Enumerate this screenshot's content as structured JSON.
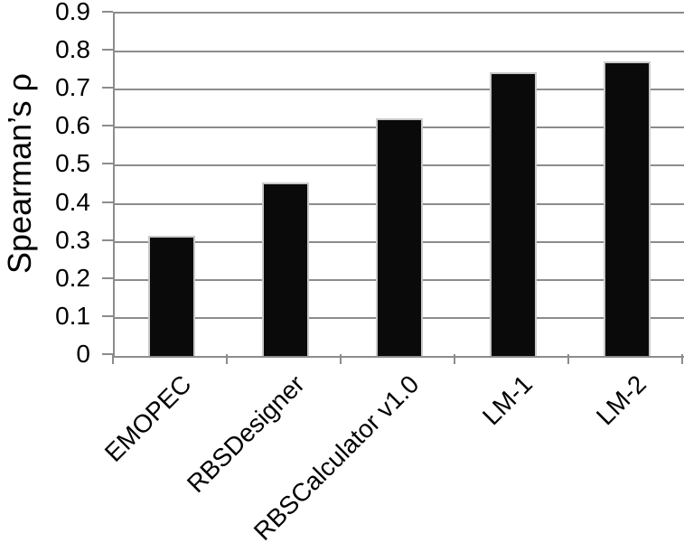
{
  "chart_data": {
    "type": "bar",
    "title": "",
    "xlabel": "",
    "ylabel": "Spearman’s ρ",
    "categories": [
      "EMOPEC",
      "RBSDesigner",
      "RBSCalculator v1.0",
      "LM-1",
      "LM-2"
    ],
    "values": [
      0.315,
      0.455,
      0.625,
      0.745,
      0.775
    ],
    "ylim": [
      0,
      0.9
    ],
    "ytick_step": 0.1,
    "ytick_labels": [
      "0",
      "0.1",
      "0.2",
      "0.3",
      "0.4",
      "0.5",
      "0.6",
      "0.7",
      "0.8",
      "0.9"
    ],
    "grid": true,
    "legend": "none",
    "x_label_rotation_deg": 45,
    "colors": {
      "bar_fill": "#0a0a0a",
      "bar_outline": "#c9c9c9",
      "axis_and_grid": "#8c8c8c",
      "text": "#000000",
      "background": "#ffffff"
    }
  }
}
